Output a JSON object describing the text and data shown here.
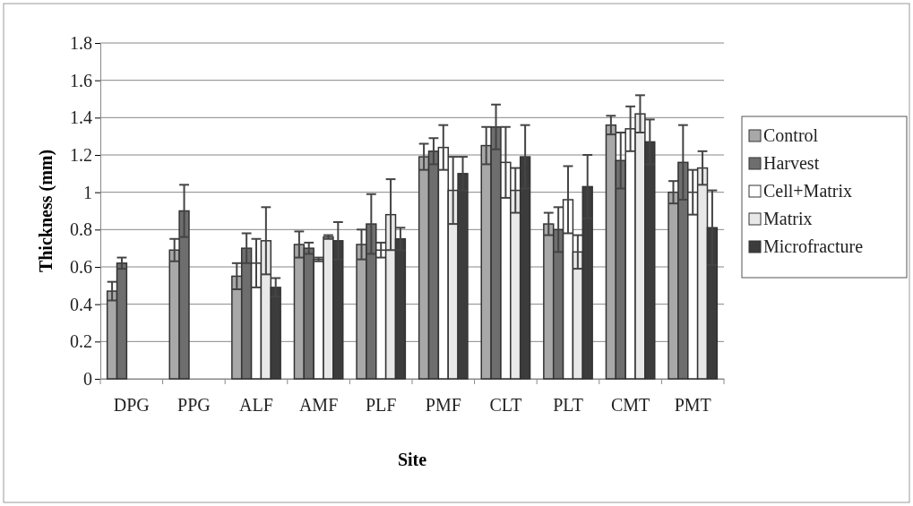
{
  "chart_data": {
    "type": "bar",
    "xlabel": "Site",
    "ylabel": "Thickness (mm)",
    "categories": [
      "DPG",
      "PPG",
      "ALF",
      "AMF",
      "PLF",
      "PMF",
      "CLT",
      "PLT",
      "CMT",
      "PMT"
    ],
    "ylim": [
      0,
      1.8
    ],
    "yticks": [
      0,
      0.2,
      0.4,
      0.6,
      0.8,
      1,
      1.2,
      1.4,
      1.6,
      1.8
    ],
    "grid": "y",
    "legend": "right",
    "series": [
      {
        "name": "Control",
        "color": "#a8a8a8",
        "values": [
          0.47,
          0.69,
          0.55,
          0.72,
          0.72,
          1.19,
          1.25,
          0.83,
          1.36,
          1.0
        ],
        "errors": [
          0.05,
          0.06,
          0.07,
          0.07,
          0.08,
          0.07,
          0.1,
          0.06,
          0.05,
          0.06
        ]
      },
      {
        "name": "Harvest",
        "color": "#6e6e6e",
        "values": [
          0.62,
          0.9,
          0.7,
          0.7,
          0.83,
          1.22,
          1.35,
          0.8,
          1.17,
          1.16
        ],
        "errors": [
          0.03,
          0.14,
          0.08,
          0.03,
          0.16,
          0.07,
          0.12,
          0.12,
          0.15,
          0.2
        ]
      },
      {
        "name": "Cell+Matrix",
        "color": "#ffffff",
        "values": [
          null,
          null,
          0.62,
          0.64,
          0.69,
          1.24,
          1.16,
          0.96,
          1.34,
          1.0
        ],
        "errors": [
          null,
          null,
          0.13,
          0.01,
          0.04,
          0.12,
          0.19,
          0.18,
          0.12,
          0.12
        ]
      },
      {
        "name": "Matrix",
        "color": "#e8e8e8",
        "values": [
          null,
          null,
          0.74,
          0.76,
          0.88,
          1.01,
          1.01,
          0.68,
          1.42,
          1.13
        ],
        "errors": [
          null,
          null,
          0.18,
          0.01,
          0.19,
          0.18,
          0.12,
          0.09,
          0.1,
          0.09
        ]
      },
      {
        "name": "Microfracture",
        "color": "#3c3c3c",
        "values": [
          null,
          null,
          0.49,
          0.74,
          0.75,
          1.1,
          1.19,
          1.03,
          1.27,
          0.81
        ],
        "errors": [
          null,
          null,
          0.05,
          0.1,
          0.06,
          0.09,
          0.17,
          0.17,
          0.12,
          0.2
        ]
      }
    ]
  }
}
